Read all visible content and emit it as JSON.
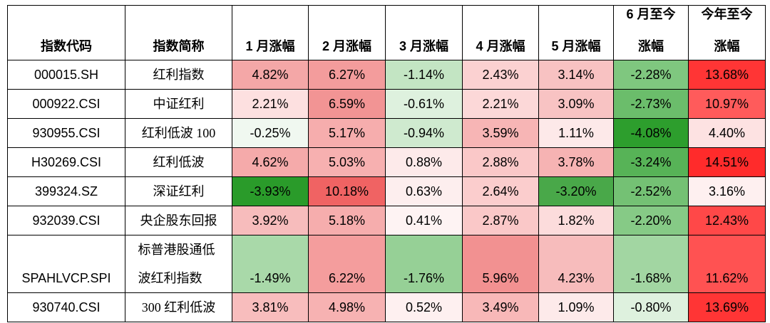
{
  "chart_data": {
    "type": "table",
    "columns": [
      {
        "lines": [
          "指数代码"
        ]
      },
      {
        "lines": [
          "指数简称"
        ]
      },
      {
        "lines": [
          "1 月涨幅"
        ]
      },
      {
        "lines": [
          "2 月涨幅"
        ]
      },
      {
        "lines": [
          "3 月涨幅"
        ]
      },
      {
        "lines": [
          "4 月涨幅"
        ]
      },
      {
        "lines": [
          "5 月涨幅"
        ]
      },
      {
        "lines": [
          "6 月至今",
          "涨幅"
        ]
      },
      {
        "lines": [
          "今年至今",
          "涨幅"
        ]
      }
    ],
    "rows": [
      {
        "code": "000015.SH",
        "name": "红利指数",
        "values": [
          {
            "text": "4.82%",
            "bg": "#f4a7a7"
          },
          {
            "text": "6.27%",
            "bg": "#f39c9c"
          },
          {
            "text": "-1.14%",
            "bg": "#c3e5c3"
          },
          {
            "text": "2.43%",
            "bg": "#fbd1d1"
          },
          {
            "text": "3.14%",
            "bg": "#f8c2c2"
          },
          {
            "text": "-2.28%",
            "bg": "#7fc77f"
          },
          {
            "text": "13.68%",
            "bg": "#ff3535"
          }
        ]
      },
      {
        "code": "000922.CSI",
        "name": "中证红利",
        "values": [
          {
            "text": "2.21%",
            "bg": "#fde0e0"
          },
          {
            "text": "6.59%",
            "bg": "#f29494"
          },
          {
            "text": "-0.61%",
            "bg": "#def1de"
          },
          {
            "text": "2.21%",
            "bg": "#fcd8d8"
          },
          {
            "text": "3.09%",
            "bg": "#f8c3c3"
          },
          {
            "text": "-2.73%",
            "bg": "#6bbd6b"
          },
          {
            "text": "10.97%",
            "bg": "#ff5b5b"
          }
        ]
      },
      {
        "code": "930955.CSI",
        "name": "红利低波 100",
        "values": [
          {
            "text": "-0.25%",
            "bg": "#f0f8f0"
          },
          {
            "text": "5.17%",
            "bg": "#f6adad"
          },
          {
            "text": "-0.94%",
            "bg": "#cfeacf"
          },
          {
            "text": "3.59%",
            "bg": "#f7b5b5"
          },
          {
            "text": "1.11%",
            "bg": "#fde9e9"
          },
          {
            "text": "-4.08%",
            "bg": "#2d9e2d"
          },
          {
            "text": "4.40%",
            "bg": "#fde2e2"
          }
        ]
      },
      {
        "code": "H30269.CSI",
        "name": "红利低波",
        "values": [
          {
            "text": "4.62%",
            "bg": "#f5aaaa"
          },
          {
            "text": "5.03%",
            "bg": "#f7b0b0"
          },
          {
            "text": "0.88%",
            "bg": "#fdeaea"
          },
          {
            "text": "2.88%",
            "bg": "#fac8c8"
          },
          {
            "text": "3.78%",
            "bg": "#f6b3b3"
          },
          {
            "text": "-3.24%",
            "bg": "#57b357"
          },
          {
            "text": "14.51%",
            "bg": "#ff2b2b"
          }
        ]
      },
      {
        "code": "399324.SZ",
        "name": "深证红利",
        "values": [
          {
            "text": "-3.93%",
            "bg": "#2a9b2a"
          },
          {
            "text": "10.18%",
            "bg": "#f06363"
          },
          {
            "text": "0.63%",
            "bg": "#fdeeee"
          },
          {
            "text": "2.64%",
            "bg": "#fbcdcd"
          },
          {
            "text": "-3.20%",
            "bg": "#49a849"
          },
          {
            "text": "-2.52%",
            "bg": "#74c174"
          },
          {
            "text": "3.16%",
            "bg": "#fef0f0"
          }
        ]
      },
      {
        "code": "932039.CSI",
        "name": "央企股东回报",
        "values": [
          {
            "text": "3.92%",
            "bg": "#f7bcbc"
          },
          {
            "text": "5.18%",
            "bg": "#f6adad"
          },
          {
            "text": "0.41%",
            "bg": "#fef3f3"
          },
          {
            "text": "2.87%",
            "bg": "#fac8c8"
          },
          {
            "text": "1.82%",
            "bg": "#fcdcdc"
          },
          {
            "text": "-2.20%",
            "bg": "#86ca86"
          },
          {
            "text": "12.43%",
            "bg": "#ff4848"
          }
        ]
      },
      {
        "code": "SPAHLVCP.SPI",
        "name": "标普港股通低波红利指数",
        "values": [
          {
            "text": "-1.49%",
            "bg": "#a9d9a9"
          },
          {
            "text": "6.22%",
            "bg": "#f49d9d"
          },
          {
            "text": "-1.76%",
            "bg": "#96d096"
          },
          {
            "text": "5.96%",
            "bg": "#f29191"
          },
          {
            "text": "4.23%",
            "bg": "#f7bcbc"
          },
          {
            "text": "-1.68%",
            "bg": "#a2d6a2"
          },
          {
            "text": "11.62%",
            "bg": "#ff5252"
          }
        ]
      },
      {
        "code": "930740.CSI",
        "name": "300 红利低波",
        "values": [
          {
            "text": "3.81%",
            "bg": "#f8bdbd"
          },
          {
            "text": "4.98%",
            "bg": "#f7b2b2"
          },
          {
            "text": "0.52%",
            "bg": "#fef0f0"
          },
          {
            "text": "3.49%",
            "bg": "#f8b8b8"
          },
          {
            "text": "1.09%",
            "bg": "#fdeaea"
          },
          {
            "text": "-0.80%",
            "bg": "#def1de"
          },
          {
            "text": "13.69%",
            "bg": "#ff3535"
          }
        ]
      }
    ]
  }
}
